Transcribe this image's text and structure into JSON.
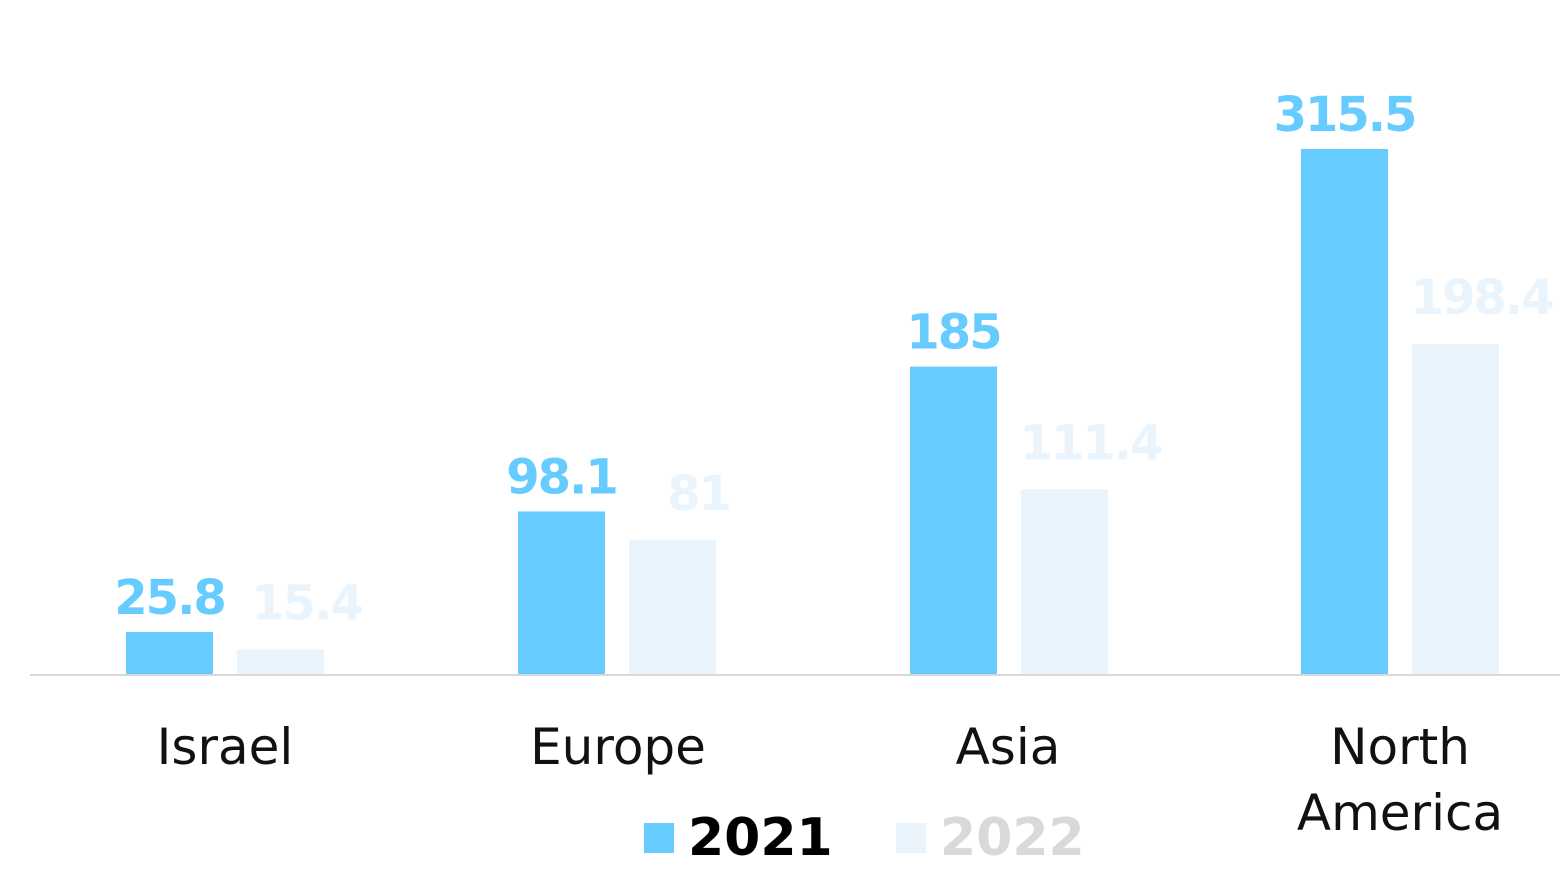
{
  "chart_data": {
    "type": "bar",
    "title": "",
    "xlabel": "",
    "ylabel": "",
    "categories": [
      "Israel",
      "Europe",
      "Asia",
      "North America"
    ],
    "category_lines": [
      [
        "Israel"
      ],
      [
        "Europe"
      ],
      [
        "Asia"
      ],
      [
        "North",
        "America"
      ]
    ],
    "series": [
      {
        "name": "2021",
        "values": [
          25.8,
          98.1,
          185,
          315.5
        ],
        "labels": [
          "25.8",
          "98.1",
          "185",
          "315.5"
        ],
        "color": "#66CCFF",
        "label_color": "#66CCFF",
        "legend_text_color": "#000000"
      },
      {
        "name": "2022",
        "values": [
          15.4,
          81,
          111.4,
          198.4
        ],
        "labels": [
          "15.4",
          "81",
          "111.4",
          "198.4"
        ],
        "color": "#EAF4FD",
        "label_color": "#EAF4FD",
        "legend_text_color": "#D9D9D9"
      }
    ],
    "ylim": [
      0,
      320
    ],
    "grid": false,
    "y_axis_visible": false,
    "axis_line_color": "#D9D9D9",
    "legend": {
      "placement": "bottom-center"
    }
  }
}
